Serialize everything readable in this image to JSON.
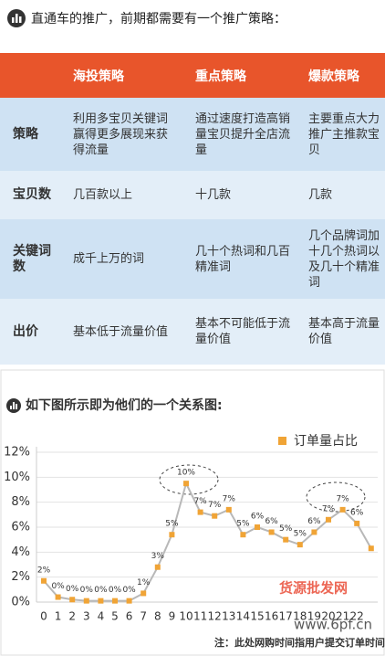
{
  "header": {
    "title": "直通车的推广，前期都需要有一个推广策略："
  },
  "table": {
    "header": [
      "海投策略",
      "重点策略",
      "爆款策略"
    ],
    "rows": [
      [
        "策略",
        "利用多宝贝关键词赢得更多展现来获得流量",
        "通过速度打造高销量宝贝提升全店流量",
        "主要重点大力推广主推款宝贝"
      ],
      [
        "宝贝数",
        "几百款以上",
        "十几款",
        "几款"
      ],
      [
        "关键词数",
        "成千上万的词",
        "几十个热词和几百精准词",
        "几个品牌词加十几个热词以及几十个精准词"
      ],
      [
        "出价",
        "基本低于流量价值",
        "基本不可能低于流量价值",
        "基本高于流量价值"
      ]
    ]
  },
  "chart_data": {
    "type": "line",
    "title": "如下图所示即为他们的一个关系图:",
    "categories": [
      "0",
      "1",
      "2",
      "3",
      "4",
      "5",
      "6",
      "7",
      "8",
      "9",
      "10",
      "11",
      "12",
      "13",
      "14",
      "15",
      "16",
      "17",
      "18",
      "19",
      "20",
      "21",
      "22",
      null
    ],
    "series": [
      {
        "name": "订单量占比",
        "color": "#f0a436",
        "line_color": "#b8b8b8",
        "values": [
          1.7,
          0.4,
          0.2,
          0.1,
          0.1,
          0.1,
          0.1,
          0.7,
          2.8,
          5.4,
          9.5,
          7.2,
          6.9,
          7.4,
          5.4,
          6.0,
          5.6,
          5.0,
          4.6,
          5.6,
          6.6,
          7.4,
          6.3,
          4.3
        ],
        "value_labels": [
          "2%",
          "0%",
          "0%",
          "0%",
          "0%",
          "0%",
          "0%",
          "1%",
          "3%",
          "5%",
          "10%",
          "7%",
          "7%",
          "7%",
          "5%",
          "6%",
          "6%",
          "5%",
          "5%",
          "6%",
          "7%",
          "7%",
          "6%",
          null
        ]
      }
    ],
    "ylim": [
      0,
      12
    ],
    "yticks": [
      {
        "value": 0,
        "label": "0%"
      },
      {
        "value": 2,
        "label": "2%"
      },
      {
        "value": 4,
        "label": "4%"
      },
      {
        "value": 6,
        "label": "6%"
      },
      {
        "value": 8,
        "label": "8%"
      },
      {
        "value": 10,
        "label": "10%"
      },
      {
        "value": 12,
        "label": "12%"
      }
    ],
    "grid": true,
    "legend": "top-right",
    "note": "注：此处网购时间指用户提交订单时间"
  },
  "watermark": [
    "货源批发网",
    "www.6pf.cn"
  ]
}
